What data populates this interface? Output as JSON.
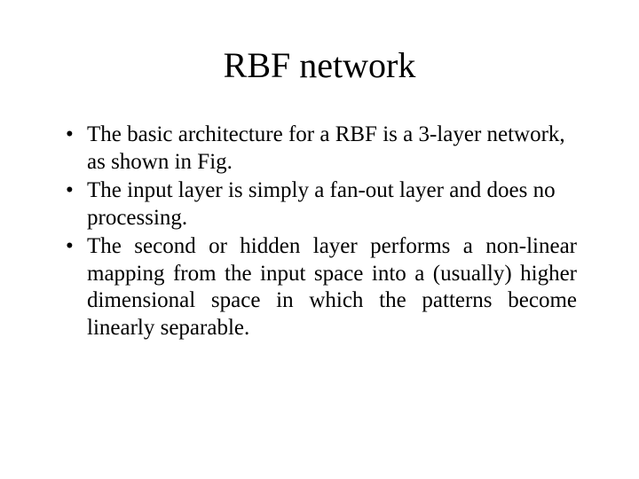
{
  "slide": {
    "title": "RBF network",
    "title_fontsize": 40,
    "body_fontsize": 25,
    "font_family": "Times New Roman",
    "text_color": "#000000",
    "background_color": "#ffffff",
    "bullets": [
      {
        "text": "The basic architecture for a RBF is a 3-layer network, as shown in Fig.",
        "justify": false,
        "leading_space": false
      },
      {
        "text": "The input layer is simply a fan-out layer and does no processing.",
        "justify": false,
        "leading_space": true
      },
      {
        "text": "The second or hidden layer performs a non-linear mapping from the input space into a (usually) higher dimensional space in which the patterns become linearly separable.",
        "justify": true,
        "leading_space": false
      }
    ]
  }
}
